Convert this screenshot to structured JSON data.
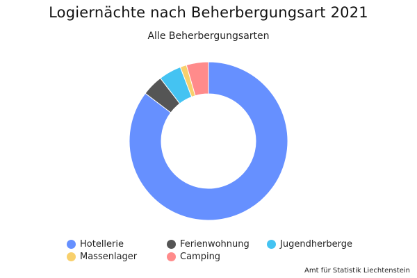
{
  "title": "Logiernächte nach Beherbergungsart 2021",
  "subtitle": "Alle Beherbergungsarten",
  "credit": "Amt für Statistik Liechtenstein",
  "chart_data": {
    "type": "pie",
    "donut": true,
    "title": "Logiernächte nach Beherbergungsart 2021",
    "subtitle": "Alle Beherbergungsarten",
    "legend_position": "bottom",
    "categories": [
      "Hotellerie",
      "Ferienwohnung",
      "Jugendherberge",
      "Massenlager",
      "Camping"
    ],
    "values": [
      85.3,
      4.3,
      4.6,
      1.3,
      4.5
    ],
    "unit": "percent of total (estimated)",
    "colors": [
      "#6690ff",
      "#555555",
      "#44c3f2",
      "#f8d06c",
      "#ff8b8b"
    ]
  }
}
